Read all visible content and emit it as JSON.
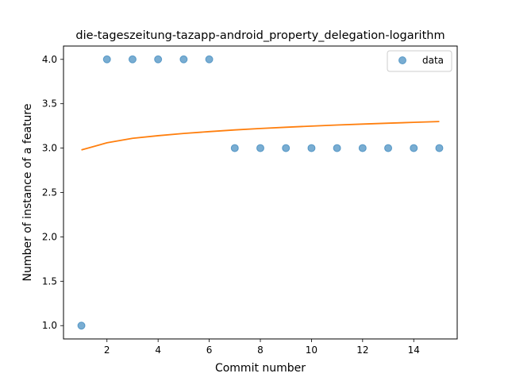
{
  "chart_data": {
    "type": "scatter",
    "title": "die-tageszeitung-tazapp-android_property_delegation-logarithm",
    "xlabel": "Commit number",
    "ylabel": "Number of instance of a feature",
    "xlim": [
      0.3,
      15.7
    ],
    "ylim": [
      0.85,
      4.15
    ],
    "xticks": [
      2,
      4,
      6,
      8,
      10,
      12,
      14
    ],
    "yticks": [
      1.0,
      1.5,
      2.0,
      2.5,
      3.0,
      3.5,
      4.0
    ],
    "legend_position": "top-right",
    "grid": false,
    "series": [
      {
        "name": "data",
        "kind": "scatter",
        "color": "#1f77b4",
        "x": [
          1,
          2,
          3,
          4,
          5,
          6,
          7,
          8,
          9,
          10,
          11,
          12,
          13,
          14,
          15
        ],
        "y": [
          1,
          4,
          4,
          4,
          4,
          4,
          3,
          3,
          3,
          3,
          3,
          3,
          3,
          3,
          3
        ]
      },
      {
        "kind": "line",
        "color": "#ff7f0e",
        "x": [
          1,
          2,
          3,
          4,
          5,
          6,
          7,
          8,
          9,
          10,
          11,
          12,
          13,
          14,
          15
        ],
        "y": [
          2.98,
          3.06,
          3.11,
          3.14,
          3.165,
          3.186,
          3.205,
          3.221,
          3.235,
          3.248,
          3.26,
          3.271,
          3.281,
          3.29,
          3.299
        ]
      }
    ]
  }
}
